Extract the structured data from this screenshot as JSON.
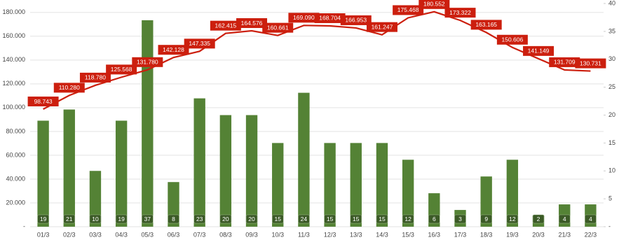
{
  "chart_data": {
    "type": "combo",
    "categories": [
      "01/3",
      "02/3",
      "03/3",
      "04/3",
      "05/3",
      "06/3",
      "07/3",
      "08/3",
      "09/3",
      "10/3",
      "11/3",
      "12/3",
      "13/3",
      "14/3",
      "15/3",
      "16/3",
      "17/3",
      "18/3",
      "19/3",
      "20/3",
      "21/3",
      "22/3"
    ],
    "series": [
      {
        "type": "bar",
        "axis": "y2",
        "color": "#548235",
        "values": [
          19,
          21,
          10,
          19,
          37,
          8,
          23,
          20,
          20,
          15,
          24,
          15,
          15,
          15,
          12,
          6,
          3,
          9,
          12,
          2,
          4,
          4
        ]
      },
      {
        "type": "line",
        "axis": "y",
        "color": "#cc1f0e",
        "values": [
          98743,
          110280,
          118780,
          125568,
          131780,
          142128,
          147335,
          162415,
          164576,
          160661,
          169090,
          168704,
          166953,
          161247,
          175468,
          180552,
          173322,
          163165,
          150606,
          141149,
          131709,
          130731
        ],
        "value_labels": [
          "98.743",
          "110.280",
          "118.780",
          "125.568",
          "131.780",
          "142.128",
          "147.335",
          "162.415",
          "164.576",
          "160.661",
          "169.090",
          "168.704",
          "166.953",
          "161.247",
          "175.468",
          "180.552",
          "173.322",
          "163.165",
          "150.606",
          "141.149",
          "131.709",
          "130.731"
        ]
      }
    ],
    "ylim": [
      0,
      187500
    ],
    "yticks": [
      {
        "value": 0,
        "label": "-"
      },
      {
        "value": 20000,
        "label": "20.000"
      },
      {
        "value": 40000,
        "label": "40.000"
      },
      {
        "value": 60000,
        "label": "60.000"
      },
      {
        "value": 80000,
        "label": "80.000"
      },
      {
        "value": 100000,
        "label": "100.000"
      },
      {
        "value": 120000,
        "label": "120.000"
      },
      {
        "value": 140000,
        "label": "140.000"
      },
      {
        "value": 160000,
        "label": "160.000"
      },
      {
        "value": 180000,
        "label": "180.000"
      }
    ],
    "y2lim": [
      0,
      40
    ],
    "y2ticks": [
      {
        "value": 0,
        "label": "-"
      },
      5,
      10,
      15,
      20,
      25,
      30,
      35,
      40
    ],
    "grid": true
  }
}
